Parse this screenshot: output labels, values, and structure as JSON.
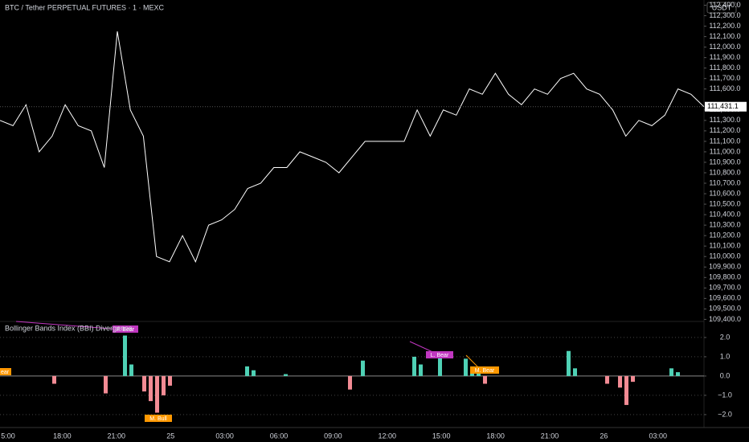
{
  "header": {
    "title": "BTC / Tether PERPETUAL FUTURES · 1 · MEXC",
    "currency": "USDT"
  },
  "chart_data": [
    {
      "type": "line",
      "color": "#ffffff",
      "values": [
        111300,
        111250,
        111450,
        111000,
        111150,
        111450,
        111250,
        111200,
        110850,
        112150,
        111400,
        111150,
        110000,
        109950,
        110200,
        109950,
        110300,
        110350,
        110450,
        110650,
        110700,
        110850,
        110850,
        111000,
        110950,
        110900,
        110800,
        110950,
        111100,
        111100,
        111100,
        111100,
        111400,
        111150,
        111400,
        111350,
        111600,
        111550,
        111750,
        111550,
        111450,
        111600,
        111550,
        111700,
        111750,
        111600,
        111550,
        111400,
        111150,
        111300,
        111250,
        111350,
        111600,
        111550,
        111431.1
      ],
      "last_price": {
        "value": 111431.1,
        "label": "111,431.1"
      },
      "ylim": [
        109380,
        112450
      ],
      "yticks": [
        {
          "value": 109400,
          "label": "109,400.0"
        },
        {
          "value": 109500,
          "label": "109,500.0"
        },
        {
          "value": 109600,
          "label": "109,600.0"
        },
        {
          "value": 109700,
          "label": "109,700.0"
        },
        {
          "value": 109800,
          "label": "109,800.0"
        },
        {
          "value": 109900,
          "label": "109,900.0"
        },
        {
          "value": 110000,
          "label": "110,000.0"
        },
        {
          "value": 110100,
          "label": "110,100.0"
        },
        {
          "value": 110200,
          "label": "110,200.0"
        },
        {
          "value": 110300,
          "label": "110,300.0"
        },
        {
          "value": 110400,
          "label": "110,400.0"
        },
        {
          "value": 110500,
          "label": "110,500.0"
        },
        {
          "value": 110600,
          "label": "110,600.0"
        },
        {
          "value": 110700,
          "label": "110,700.0"
        },
        {
          "value": 110800,
          "label": "110,800.0"
        },
        {
          "value": 110900,
          "label": "110,900.0"
        },
        {
          "value": 111000,
          "label": "111,000.0"
        },
        {
          "value": 111100,
          "label": "111,100.0"
        },
        {
          "value": 111200,
          "label": "111,200.0"
        },
        {
          "value": 111300,
          "label": "111,300.0"
        },
        {
          "value": 111400,
          "label": "111,400.0"
        },
        {
          "value": 111600,
          "label": "111,600.0"
        },
        {
          "value": 111700,
          "label": "111,700.0"
        },
        {
          "value": 111800,
          "label": "111,800.0"
        },
        {
          "value": 111900,
          "label": "111,900.0"
        },
        {
          "value": 112000,
          "label": "112,000.0"
        },
        {
          "value": 112100,
          "label": "112,100.0"
        },
        {
          "value": 112200,
          "label": "112,200.0"
        },
        {
          "value": 112300,
          "label": "112,300.0"
        },
        {
          "value": 112400,
          "label": "112,400.0"
        }
      ]
    },
    {
      "type": "histogram",
      "title": "Bollinger Bands Index (BBI) Divergence",
      "color_positive": "#4fd1b5",
      "color_negative": "#f28b94",
      "values": [
        0,
        0,
        0,
        0,
        0,
        0,
        0,
        0,
        -0.4,
        0,
        0,
        0,
        0,
        0,
        0,
        0,
        -0.9,
        0,
        0,
        2.1,
        0.6,
        0,
        -0.8,
        -1.3,
        -1.9,
        -1.0,
        -0.5,
        0,
        0,
        0,
        0,
        0,
        0,
        0,
        0,
        0,
        0,
        0,
        0.5,
        0.3,
        0,
        0,
        0,
        0,
        0.1,
        0,
        0,
        0,
        0,
        0,
        0,
        0,
        0,
        0,
        -0.7,
        0,
        0.8,
        0,
        0,
        0,
        0,
        0,
        0,
        0,
        1.0,
        0.6,
        0,
        0,
        1.0,
        0,
        0,
        0,
        0.9,
        0.5,
        0.3,
        -0.4,
        0,
        0,
        0,
        0,
        0,
        0,
        0,
        0,
        0,
        0,
        0,
        0,
        1.3,
        0.4,
        0,
        0,
        0,
        0,
        -0.4,
        0,
        -0.6,
        -1.5,
        -0.3,
        0,
        0,
        0,
        0,
        0,
        0.4,
        0.2,
        0,
        0,
        0,
        0
      ],
      "ylim": [
        -2.67,
        2.83
      ],
      "yticks": [
        {
          "value": 2,
          "label": "2.0"
        },
        {
          "value": 1,
          "label": "1.0"
        },
        {
          "value": 0,
          "label": "0.0"
        },
        {
          "value": -1,
          "label": "−1.0"
        },
        {
          "value": -2,
          "label": "−2.0"
        }
      ],
      "annotations": [
        "F. Bear",
        "L. Bear",
        "M. Bear",
        "M. Bull",
        "ear"
      ]
    }
  ],
  "x_axis": {
    "categories": [
      "5:00",
      "18:00",
      "21:00",
      "25",
      "03:00",
      "06:00",
      "09:00",
      "12:00",
      "15:00",
      "18:00",
      "21:00",
      "26",
      "03:00"
    ]
  }
}
